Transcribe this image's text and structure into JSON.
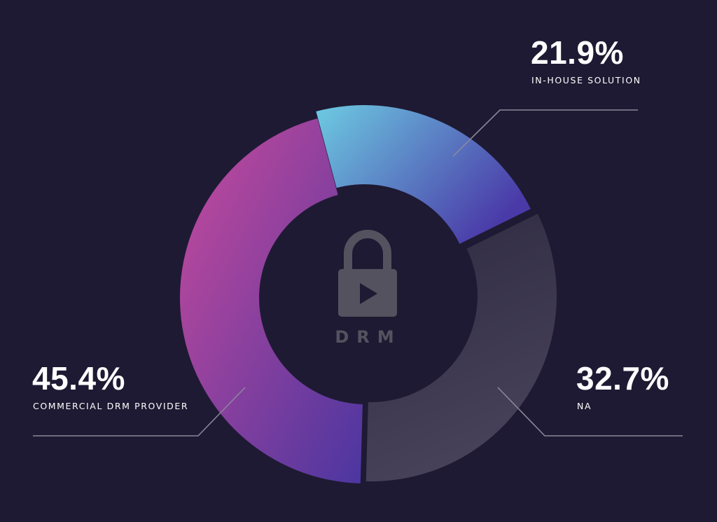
{
  "colors": {
    "background": "#1e1a33",
    "commercial_start": "#c84a9c",
    "commercial_end": "#4b36a0",
    "inhouse_start": "#6dcbe2",
    "inhouse_end": "#4a3aa8",
    "na_start": "#2e2a40",
    "na_end": "#47425a",
    "leader_line": "#8a879a",
    "icon": "#55525f"
  },
  "center": {
    "icon": "lock-play-icon",
    "label": "DRM"
  },
  "chart_data": {
    "type": "pie",
    "categories": [
      "In-house solution",
      "NA",
      "Commercial DRM provider"
    ],
    "values": [
      21.9,
      32.7,
      45.4
    ],
    "value_labels": [
      "21.9%",
      "32.7%",
      "45.4%"
    ],
    "labels": [
      "IN-HOUSE SOLUTION",
      "NA",
      "COMMERCIAL DRM PROVIDER"
    ],
    "unit": "%",
    "donut": true
  }
}
